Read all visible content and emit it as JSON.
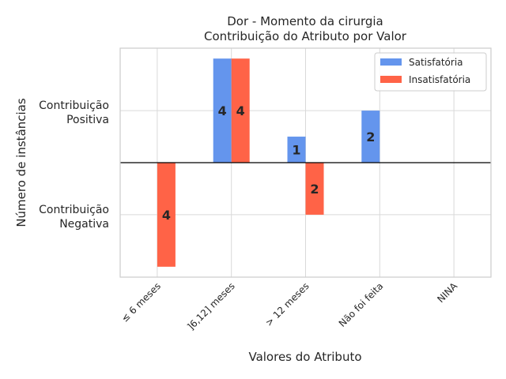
{
  "chart_data": {
    "type": "bar",
    "title": [
      "Dor - Momento da cirurgia",
      "Contribuição do Atributo por Valor"
    ],
    "xlabel": "Valores do Atributo",
    "ylabel": "Número de instâncias",
    "categories": [
      "≤ 6 meses",
      "]6,12] meses",
      "> 12 meses",
      "Não foi feita",
      "NINA"
    ],
    "series": [
      {
        "name": "Satisfatória",
        "color": "#6495ED",
        "values": [
          0,
          4,
          1,
          2,
          0
        ]
      },
      {
        "name": "Insatisfatória",
        "color": "#FF6347",
        "values": [
          -4,
          4,
          -2,
          0,
          0
        ]
      }
    ],
    "ylim": [
      -4.4,
      4.4
    ],
    "ytick_values": [
      2,
      -2
    ],
    "ytick_labels": [
      [
        "Contribuição",
        "Positiva"
      ],
      [
        "Contribuição",
        "Negativa"
      ]
    ],
    "grid": true,
    "legend": "top-right"
  }
}
